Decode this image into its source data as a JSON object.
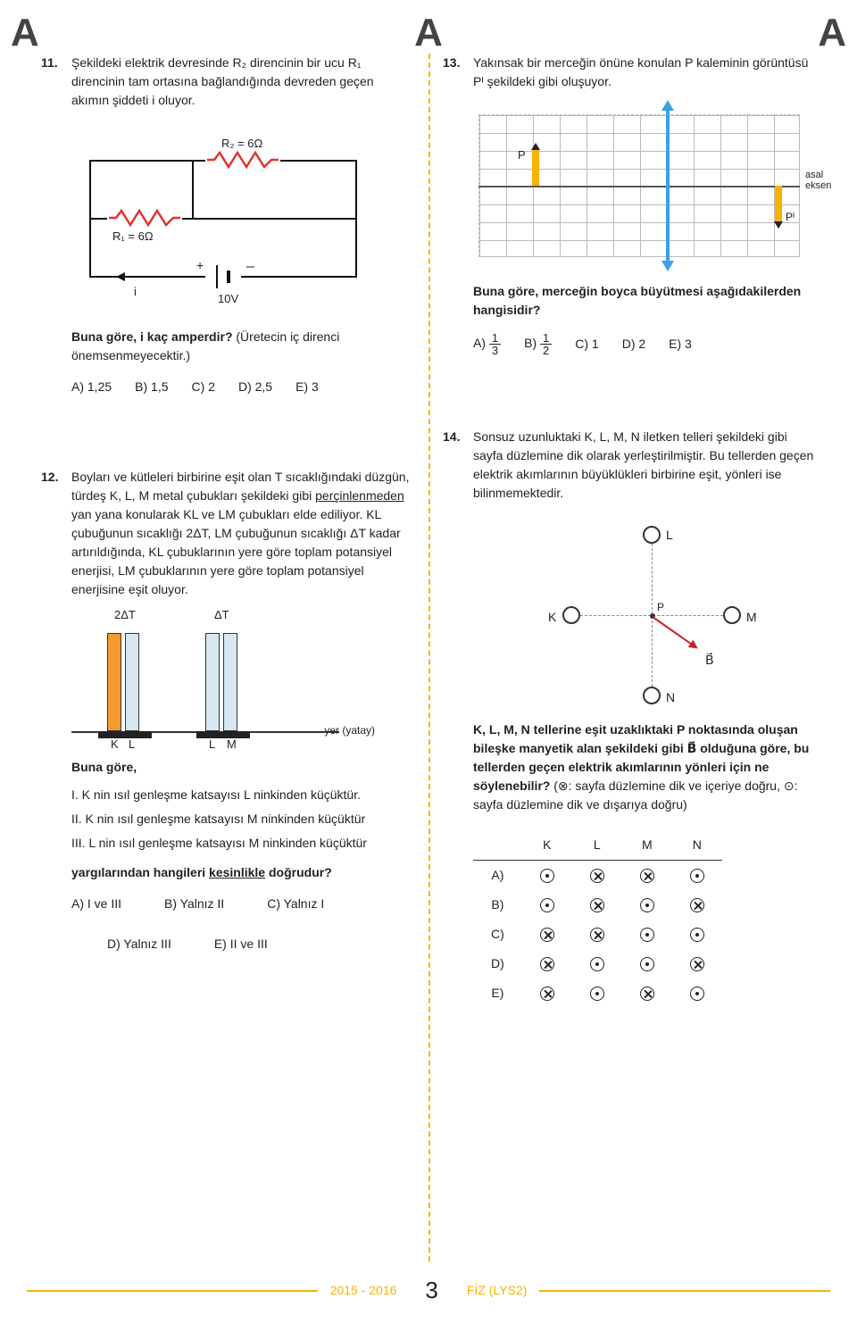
{
  "header": {
    "letter": "A"
  },
  "q11": {
    "num": "11.",
    "text": "Şekildeki elektrik devresinde R₂ direncinin bir ucu R₁ direncinin tam ortasına bağlandığında devreden geçen akımın şiddeti i oluyor.",
    "r1": "R₁ = 6Ω",
    "r2": "R₂ = 6Ω",
    "volt": "10V",
    "i": "i",
    "plus": "+",
    "minus": "–",
    "prompt": "Buna göre, i kaç amperdir?",
    "prompt2": "(Üretecin iç direnci önemsenmeyecektir.)",
    "opts": {
      "a": "A) 1,25",
      "b": "B) 1,5",
      "c": "C) 2",
      "d": "D) 2,5",
      "e": "E) 3"
    }
  },
  "q12": {
    "num": "12.",
    "text1": "Boyları ve kütleleri birbirine eşit olan T sıcaklığındaki düzgün, türdeş K, L, M metal çubukları şekildeki gibi ",
    "text_u": "perçinlenmeden",
    "text2": " yan yana konularak KL ve LM çubukları elde ediliyor. KL çubuğunun sıcaklığı 2ΔT, LM çubuğunun sıcaklığı ΔT kadar artırıldığında, KL çubuklarının yere göre toplam potansiyel enerjisi, LM çubuklarının yere göre toplam potansiyel enerjisine eşit oluyor.",
    "dt1": "2ΔT",
    "dt2": "ΔT",
    "lblK": "K",
    "lblL": "L",
    "lblM": "M",
    "yer": "yer (yatay)",
    "prompt": "Buna göre,",
    "s1": "I.  K nin ısıl genleşme katsayısı L ninkinden küçüktür.",
    "s2": "II.  K nin ısıl genleşme katsayısı M ninkinden küçüktür",
    "s3": "III.  L nin ısıl genleşme katsayısı M ninkinden küçüktür",
    "prompt2a": "yargılarından hangileri ",
    "prompt2u": "kesinlikle",
    "prompt2b": " doğrudur?",
    "opts": {
      "a": "A) I ve III",
      "b": "B) Yalnız II",
      "c": "C) Yalnız I",
      "d": "D) Yalnız III",
      "e": "E) II ve III"
    }
  },
  "q13": {
    "num": "13.",
    "text": "Yakınsak bir merceğin önüne konulan P kaleminin görüntüsü Pᴵ şekildeki gibi oluşuyor.",
    "p": "P",
    "pi": "Pᴵ",
    "axis": "asal\neksen",
    "prompt": "Buna göre, merceğin boyca büyütmesi aşağıdakilerden hangisidir?",
    "opts": {
      "a_pre": "A) ",
      "a_n": "1",
      "a_d": "3",
      "b_pre": "B) ",
      "b_n": "1",
      "b_d": "2",
      "c": "C) 1",
      "d": "D) 2",
      "e": "E) 3"
    }
  },
  "q14": {
    "num": "14.",
    "text": "Sonsuz uzunluktaki K, L, M, N iletken telleri şekildeki gibi sayfa düzlemine dik olarak yerleştirilmiştir. Bu tellerden geçen elektrik akımlarının büyüklükleri birbirine eşit, yönleri ise bilinmemektedir.",
    "lK": "K",
    "lL": "L",
    "lM": "M",
    "lN": "N",
    "lP": "P",
    "lB": "B⃗",
    "prompt1": "K, L, M, N tellerine eşit uzaklıktaki P noktasında oluşan bileşke manyetik alan şekildeki gibi B⃗ olduğuna göre, bu tellerden geçen elektrik akımlarının yönleri için ne söylenebilir?",
    "prompt2": " (⊗: sayfa düzlemine dik ve içeriye doğru, ⊙: sayfa düzlemine dik ve dışarıya doğru)",
    "headers": {
      "k": "K",
      "l": "L",
      "m": "M",
      "n": "N"
    },
    "rows": {
      "a": "A)",
      "b": "B)",
      "c": "C)",
      "d": "D)",
      "e": "E)"
    },
    "matrix": [
      [
        "dot",
        "cross",
        "cross",
        "dot"
      ],
      [
        "dot",
        "cross",
        "dot",
        "cross"
      ],
      [
        "cross",
        "cross",
        "dot",
        "dot"
      ],
      [
        "cross",
        "dot",
        "dot",
        "cross"
      ],
      [
        "cross",
        "dot",
        "cross",
        "dot"
      ]
    ]
  },
  "footer": {
    "left": "2015 - 2016",
    "page": "3",
    "right": "FİZ (LYS2)"
  },
  "colors": {
    "accent": "#f7b400",
    "resistor": "#e1342e",
    "lens": "#3fa0e6"
  }
}
